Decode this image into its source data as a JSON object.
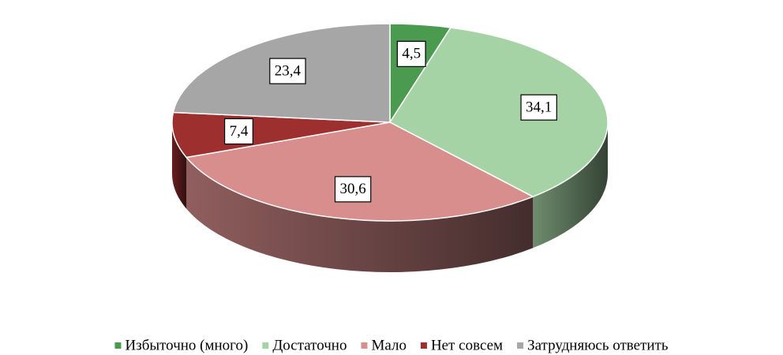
{
  "chart_data": {
    "type": "pie3d",
    "categories": [
      "Избыточно (много)",
      "Достаточно",
      "Мало",
      "Нет совсем",
      "Затрудняюсь ответить"
    ],
    "values": [
      4.5,
      34.1,
      30.6,
      7.4,
      23.4
    ],
    "value_labels": [
      "4,5",
      "34,1",
      "30,6",
      "7,4",
      "23,4"
    ],
    "colors": [
      "#4a9a4f",
      "#a6d3a6",
      "#d98e8e",
      "#9e2f2f",
      "#a6a6a6"
    ],
    "legend": "bottom"
  }
}
